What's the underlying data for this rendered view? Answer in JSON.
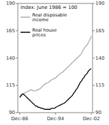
{
  "chart_data": {
    "type": "line",
    "title": "Index: June 1986 = 100",
    "x": [
      1986.92,
      1987.25,
      1987.5,
      1987.75,
      1988.0,
      1988.25,
      1988.5,
      1988.75,
      1989.0,
      1989.25,
      1989.5,
      1989.75,
      1990.0,
      1990.25,
      1990.5,
      1990.75,
      1991.0,
      1991.25,
      1991.5,
      1991.75,
      1992.0,
      1992.25,
      1992.5,
      1992.75,
      1993.0,
      1993.25,
      1993.5,
      1993.75,
      1994.0,
      1994.25,
      1994.5,
      1994.75,
      1995.0,
      1995.25,
      1995.5,
      1995.75,
      1996.0,
      1996.25,
      1996.5,
      1996.75,
      1997.0,
      1997.25,
      1997.5,
      1997.75,
      1998.0,
      1998.25,
      1998.5,
      1998.75,
      1999.0,
      1999.25,
      1999.5,
      1999.75,
      2000.0,
      2000.25,
      2000.5,
      2000.75,
      2001.0,
      2001.25,
      2001.5,
      2001.75,
      2002.0,
      2002.25,
      2002.5,
      2002.75,
      2002.92
    ],
    "series": [
      {
        "name": "Real disposable\nincome",
        "color": "#aaaaaa",
        "values": [
          104,
          105,
          106,
          107,
          108,
          108.5,
          109,
          109.5,
          110,
          110.5,
          111,
          110.5,
          110,
          110,
          110,
          110.5,
          111,
          111.5,
          112,
          113,
          114,
          115,
          116,
          116.5,
          117,
          117.5,
          118,
          119,
          120,
          120.5,
          121,
          121.5,
          122,
          123,
          124,
          125,
          126,
          126.5,
          127,
          128,
          129,
          130,
          131,
          132,
          133,
          134,
          135,
          136,
          137,
          138,
          139,
          140,
          141,
          142,
          143,
          144,
          147,
          148,
          150,
          151,
          152,
          154,
          156,
          158,
          160
        ]
      },
      {
        "name": "Real house\nprices",
        "color": "#000000",
        "values": [
          104,
          106,
          107,
          107,
          106,
          105,
          104,
          103,
          102,
          101,
          100,
          99,
          98,
          97,
          96,
          96,
          95,
          95,
          94.5,
          94,
          94,
          93.5,
          93,
          93,
          93,
          93,
          93,
          93,
          94,
          94,
          94,
          94,
          95,
          95.5,
          96,
          96.5,
          97,
          97.5,
          98,
          98.5,
          99,
          100,
          101,
          102,
          103,
          104,
          105,
          106,
          108,
          109,
          111,
          112,
          114,
          116,
          118,
          119,
          121,
          122,
          124,
          125,
          126,
          128,
          129,
          130,
          130
        ]
      }
    ],
    "xlim": [
      1986.5,
      2003.2
    ],
    "xticks": [
      {
        "value": 1986.917,
        "label": "Dec-86"
      },
      {
        "value": 1994.917,
        "label": "Dec-94"
      },
      {
        "value": 2002.917,
        "label": "Dec-02"
      }
    ],
    "ylim": [
      90,
      190
    ],
    "yticks": [
      90,
      115,
      140,
      165,
      190
    ],
    "y2lim": [
      90,
      190
    ],
    "y2ticks": [
      90,
      115,
      140,
      165,
      190
    ],
    "legend": "upper left",
    "grid": false
  }
}
